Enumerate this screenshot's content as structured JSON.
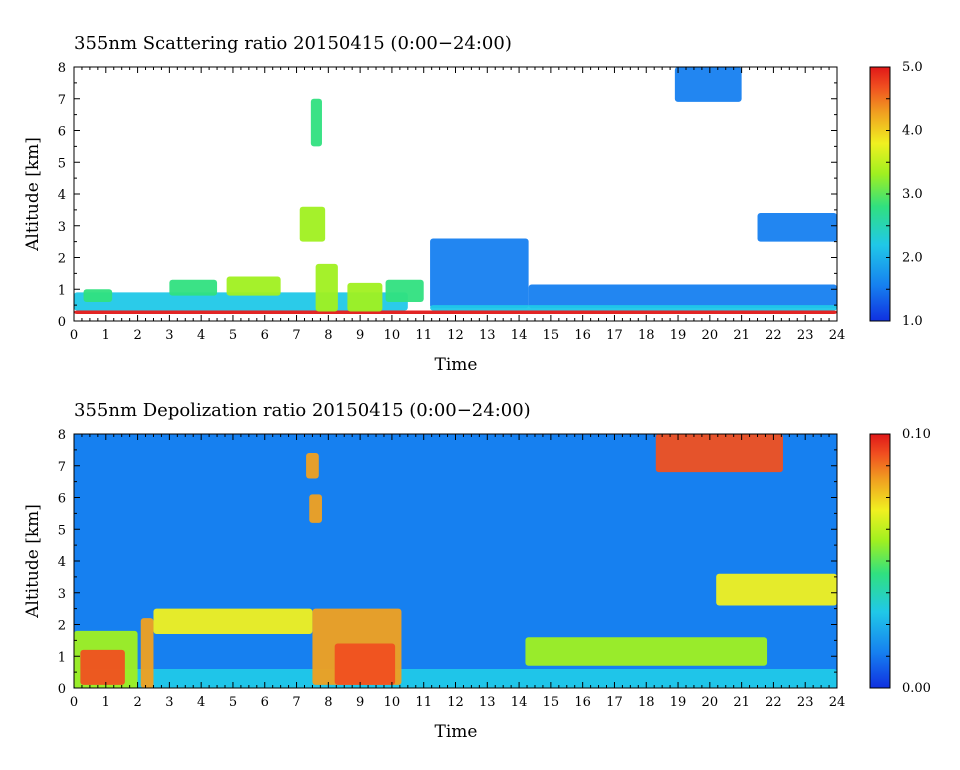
{
  "chart_data": [
    {
      "type": "heatmap",
      "title": "355nm Scattering ratio  20150415 (0:00−24:00)",
      "xlabel": "Time",
      "ylabel": "Altitude [km]",
      "xlim": [
        0,
        24
      ],
      "ylim": [
        0,
        8
      ],
      "x_ticks": [
        "0",
        "1",
        "2",
        "3",
        "4",
        "5",
        "6",
        "7",
        "8",
        "9",
        "10",
        "11",
        "12",
        "13",
        "14",
        "15",
        "16",
        "17",
        "18",
        "19",
        "20",
        "21",
        "22",
        "23",
        "24"
      ],
      "y_ticks": [
        "0",
        "1",
        "2",
        "3",
        "4",
        "5",
        "6",
        "7",
        "8"
      ],
      "colorbar": {
        "min": 1.0,
        "max": 5.0,
        "labels": [
          "1.0",
          "2.0",
          "3.0",
          "4.0",
          "5.0"
        ],
        "label_values": [
          1.0,
          2.0,
          3.0,
          4.0,
          5.0
        ]
      },
      "colors": [
        "#1030e0",
        "#1680f0",
        "#20c8e8",
        "#30e080",
        "#a0f020",
        "#f0f020",
        "#f0a020",
        "#f05020",
        "#e01818"
      ],
      "regions": [
        {
          "x": [
            0,
            24
          ],
          "y": [
            0.22,
            0.33
          ],
          "value": 5.0
        },
        {
          "x": [
            0,
            10.5
          ],
          "y": [
            0.33,
            0.9
          ],
          "value": 1.8
        },
        {
          "x": [
            0.3,
            1.2
          ],
          "y": [
            0.6,
            1.0
          ],
          "value": 2.5
        },
        {
          "x": [
            3.0,
            4.5
          ],
          "y": [
            0.8,
            1.3
          ],
          "value": 2.6
        },
        {
          "x": [
            4.8,
            6.5
          ],
          "y": [
            0.8,
            1.4
          ],
          "value": 2.8
        },
        {
          "x": [
            7.6,
            8.3
          ],
          "y": [
            0.3,
            1.8
          ],
          "value": 3.2
        },
        {
          "x": [
            8.6,
            9.7
          ],
          "y": [
            0.3,
            1.2
          ],
          "value": 3.0
        },
        {
          "x": [
            9.8,
            11.0
          ],
          "y": [
            0.6,
            1.3
          ],
          "value": 2.4
        },
        {
          "x": [
            7.45,
            7.8
          ],
          "y": [
            5.5,
            7.0
          ],
          "value": 2.6
        },
        {
          "x": [
            7.1,
            7.9
          ],
          "y": [
            2.5,
            3.6
          ],
          "value": 3.0
        },
        {
          "x": [
            11.2,
            14.3
          ],
          "y": [
            0.4,
            2.6
          ],
          "value": 1.4
        },
        {
          "x": [
            14.3,
            24
          ],
          "y": [
            0.4,
            1.15
          ],
          "value": 1.3
        },
        {
          "x": [
            11.2,
            24
          ],
          "y": [
            0.33,
            0.5
          ],
          "value": 2.2
        },
        {
          "x": [
            21.5,
            24
          ],
          "y": [
            2.5,
            3.4
          ],
          "value": 1.6
        },
        {
          "x": [
            18.9,
            21.0
          ],
          "y": [
            6.9,
            8.0
          ],
          "value": 1.5
        }
      ]
    },
    {
      "type": "heatmap",
      "title": "355nm Depolization ratio  20150415 (0:00−24:00)",
      "xlabel": "Time",
      "ylabel": "Altitude [km]",
      "xlim": [
        0,
        24
      ],
      "ylim": [
        0,
        8
      ],
      "x_ticks": [
        "0",
        "1",
        "2",
        "3",
        "4",
        "5",
        "6",
        "7",
        "8",
        "9",
        "10",
        "11",
        "12",
        "13",
        "14",
        "15",
        "16",
        "17",
        "18",
        "19",
        "20",
        "21",
        "22",
        "23",
        "24"
      ],
      "y_ticks": [
        "0",
        "1",
        "2",
        "3",
        "4",
        "5",
        "6",
        "7",
        "8"
      ],
      "colorbar": {
        "min": 0.0,
        "max": 0.1,
        "labels": [
          "0.00",
          "0.10"
        ],
        "label_values": [
          0.0,
          0.1
        ]
      },
      "colors": [
        "#1030e0",
        "#1680f0",
        "#20c8e8",
        "#30e080",
        "#a0f020",
        "#f0f020",
        "#f0a020",
        "#f05020",
        "#e01818"
      ],
      "background_value": 0.01,
      "regions": [
        {
          "x": [
            0,
            24
          ],
          "y": [
            0,
            0.6
          ],
          "value": 0.03
        },
        {
          "x": [
            0,
            2.0
          ],
          "y": [
            0,
            1.8
          ],
          "value": 0.05
        },
        {
          "x": [
            0.2,
            1.6
          ],
          "y": [
            0.1,
            1.2
          ],
          "value": 0.09
        },
        {
          "x": [
            2.1,
            2.5
          ],
          "y": [
            0,
            2.2
          ],
          "value": 0.08
        },
        {
          "x": [
            2.5,
            7.5
          ],
          "y": [
            1.7,
            2.5
          ],
          "value": 0.06
        },
        {
          "x": [
            7.5,
            10.3
          ],
          "y": [
            0.1,
            2.5
          ],
          "value": 0.07
        },
        {
          "x": [
            8.2,
            10.1
          ],
          "y": [
            0.1,
            1.4
          ],
          "value": 0.09
        },
        {
          "x": [
            7.3,
            7.7
          ],
          "y": [
            6.6,
            7.4
          ],
          "value": 0.08
        },
        {
          "x": [
            7.4,
            7.8
          ],
          "y": [
            5.2,
            6.1
          ],
          "value": 0.08
        },
        {
          "x": [
            14.2,
            21.8
          ],
          "y": [
            0.7,
            1.6
          ],
          "value": 0.05
        },
        {
          "x": [
            20.2,
            24
          ],
          "y": [
            2.6,
            3.6
          ],
          "value": 0.06
        },
        {
          "x": [
            18.3,
            22.3
          ],
          "y": [
            6.8,
            8.0
          ],
          "value": 0.09
        }
      ]
    }
  ]
}
